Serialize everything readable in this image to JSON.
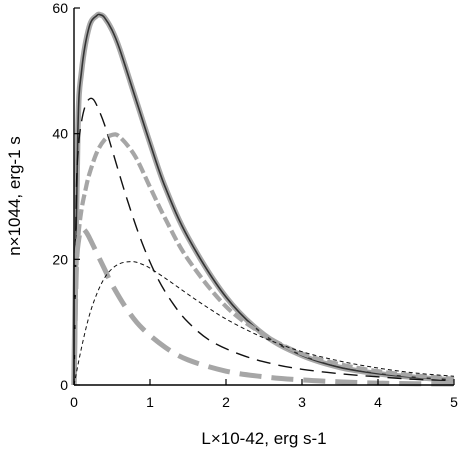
{
  "chart_data": {
    "type": "line",
    "xlabel": "L×10-42, erg s-1",
    "ylabel": "n×1044, erg-1 s",
    "xlim": [
      0,
      5
    ],
    "ylim": [
      0,
      60
    ],
    "x_ticks": [
      "0",
      "1",
      "2",
      "3",
      "4",
      "5"
    ],
    "y_ticks": [
      "0",
      "20",
      "40",
      "60"
    ],
    "grid": false,
    "legend": "none",
    "series": [
      {
        "style": "solid-dark-with-gray-halo",
        "color": "#333333",
        "x": [
          0,
          0.05,
          0.1,
          0.2,
          0.3,
          0.35,
          0.4,
          0.5,
          0.6,
          0.8,
          1.0,
          1.2,
          1.5,
          2.0,
          2.5,
          3.0,
          3.5,
          4.0,
          4.5,
          5.0
        ],
        "y": [
          0,
          40,
          50,
          57,
          58.8,
          58.9,
          58.5,
          56.5,
          53.5,
          46,
          38.5,
          31.5,
          23.5,
          14,
          8,
          4.7,
          2.8,
          1.8,
          1.2,
          0.8
        ]
      },
      {
        "style": "long-dash-black",
        "color": "#111111",
        "x": [
          0,
          0.03,
          0.06,
          0.1,
          0.15,
          0.2,
          0.25,
          0.3,
          0.4,
          0.5,
          0.7,
          0.9,
          1.1,
          1.3,
          1.5,
          1.8,
          2.2,
          2.6,
          3.0,
          3.5,
          4.0,
          4.5,
          5.0
        ],
        "y": [
          0,
          30,
          38,
          42,
          44.5,
          45.5,
          45.5,
          44.5,
          41.5,
          37.5,
          29.5,
          22.5,
          17,
          13,
          10,
          7,
          4.8,
          3.4,
          2.5,
          1.8,
          1.3,
          0.9,
          0.7
        ]
      },
      {
        "style": "thick-dash-gray",
        "color": "#a6a6a6",
        "x": [
          0,
          0.03,
          0.06,
          0.1,
          0.15,
          0.2,
          0.3,
          0.4,
          0.5,
          0.6,
          0.8,
          1.0,
          1.2,
          1.5,
          2.0,
          2.5,
          3.0,
          3.5,
          4.0,
          4.5,
          5.0
        ],
        "y": [
          0,
          18,
          24,
          28,
          31,
          33.5,
          37,
          39,
          39.8,
          39.5,
          36.5,
          31.5,
          26.5,
          20,
          12.5,
          8,
          5,
          3.3,
          2.2,
          1.5,
          1.0
        ]
      },
      {
        "style": "extra-thick-long-dash-gray",
        "color": "#a6a6a6",
        "x": [
          0,
          0.03,
          0.06,
          0.1,
          0.15,
          0.2,
          0.3,
          0.4,
          0.5,
          0.7,
          0.9,
          1.2,
          1.5,
          2.0,
          2.5,
          3.0,
          3.5,
          4.0,
          4.5,
          5.0
        ],
        "y": [
          0,
          18,
          23,
          24.8,
          24.5,
          23.5,
          21,
          18.5,
          16,
          12,
          9,
          6,
          4,
          2.2,
          1.3,
          0.8,
          0.5,
          0.3,
          0.2,
          0.15
        ]
      },
      {
        "style": "short-dash-thin-black",
        "color": "#111111",
        "x": [
          0,
          0.1,
          0.2,
          0.3,
          0.4,
          0.5,
          0.6,
          0.7,
          0.8,
          0.9,
          1.0,
          1.2,
          1.4,
          1.6,
          1.8,
          2.0,
          2.3,
          2.6,
          3.0,
          3.5,
          4.0,
          4.5,
          5.0
        ],
        "y": [
          0,
          6,
          11,
          14.5,
          17,
          18.5,
          19.3,
          19.6,
          19.6,
          19.2,
          18.6,
          17,
          15.3,
          13.6,
          12,
          10.5,
          8.6,
          7,
          5.3,
          3.8,
          2.7,
          1.9,
          1.4
        ]
      }
    ]
  }
}
